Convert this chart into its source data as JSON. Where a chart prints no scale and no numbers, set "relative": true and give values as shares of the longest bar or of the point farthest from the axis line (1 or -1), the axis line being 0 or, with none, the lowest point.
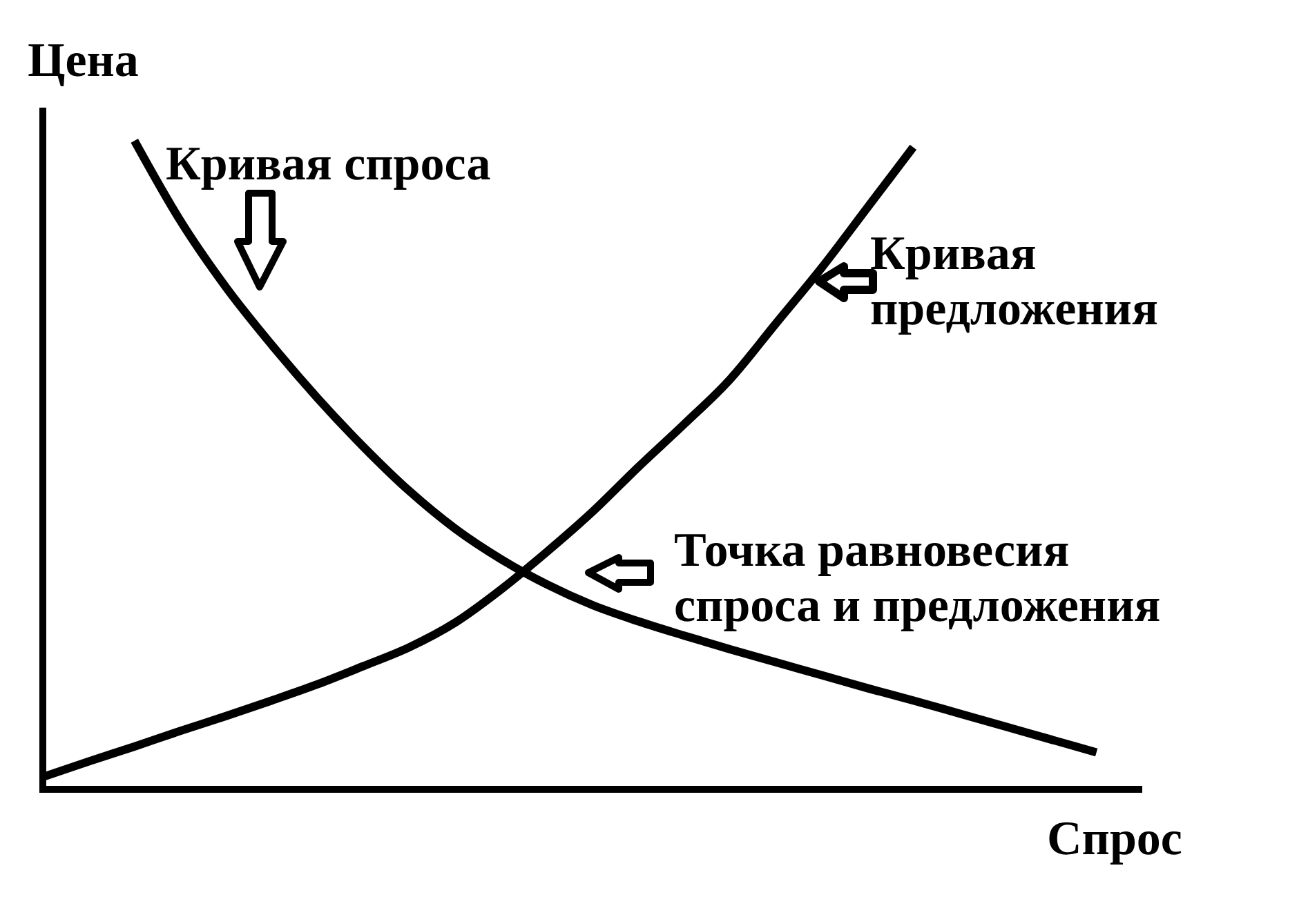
{
  "chart_data": {
    "type": "line",
    "xlabel": "Спрос",
    "ylabel": "Цена",
    "relative": true,
    "categories": [
      null,
      null,
      null,
      null,
      null,
      null,
      null,
      null,
      null,
      null,
      null,
      null,
      null,
      null,
      null,
      null,
      null,
      null,
      null,
      null,
      null,
      null,
      null,
      null,
      null
    ],
    "series": [
      {
        "name": "Кривая спроса",
        "color": "#000000",
        "values": [
          null,
          null,
          1,
          0.877,
          0.774,
          0.685,
          0.603,
          0.528,
          0.46,
          0.402,
          0.355,
          0.316,
          0.284,
          0.259,
          0.237,
          0.216,
          0.196,
          0.176,
          0.156,
          0.137,
          0.117,
          0.097,
          0.077,
          0.057,
          null
        ]
      },
      {
        "name": "Кривая предложения",
        "color": "#000000",
        "values": [
          0.019,
          0.043,
          0.066,
          0.09,
          0.113,
          0.137,
          0.162,
          0.19,
          0.219,
          0.257,
          0.308,
          0.366,
          0.428,
          0.497,
          0.563,
          0.632,
          0.718,
          0.804,
          0.897,
          0.99,
          null,
          null,
          null,
          null,
          null
        ]
      }
    ],
    "annotations": [
      "Точка равновесия спроса и предложения"
    ]
  }
}
